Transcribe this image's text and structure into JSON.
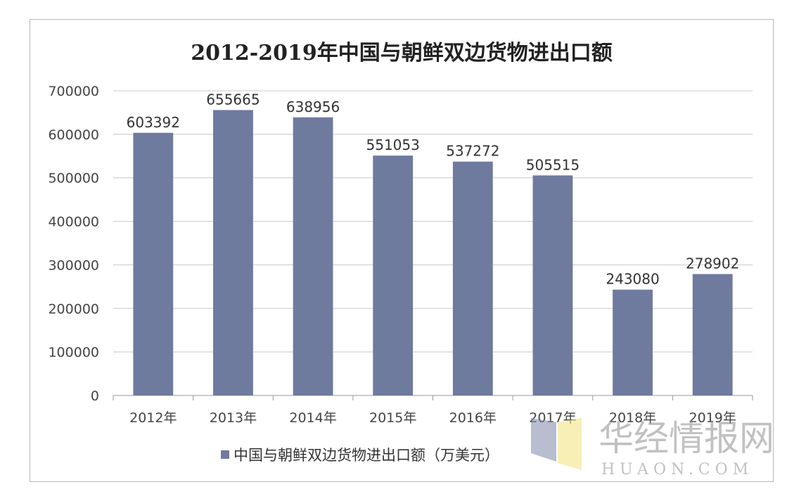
{
  "chart_data": {
    "type": "bar",
    "title": "2012-2019年中国与朝鲜双边货物进出口额",
    "categories": [
      "2012年",
      "2013年",
      "2014年",
      "2015年",
      "2016年",
      "2017年",
      "2018年",
      "2019年"
    ],
    "series": [
      {
        "name": "中国与朝鲜双边货物进出口额（万美元）",
        "values": [
          603392,
          655665,
          638956,
          551053,
          537272,
          505515,
          243080,
          278902
        ]
      }
    ],
    "ylim": [
      0,
      700000
    ],
    "yticks": [
      0,
      100000,
      200000,
      300000,
      400000,
      500000,
      600000,
      700000
    ],
    "grid": true,
    "legend_position": "bottom",
    "bar_color": "#6f7a9f"
  },
  "watermark": {
    "text_cn": "华经情报网",
    "text_en": "HUAON.COM"
  }
}
